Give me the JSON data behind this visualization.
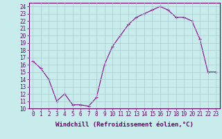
{
  "x": [
    0,
    1,
    2,
    3,
    4,
    5,
    6,
    7,
    8,
    9,
    10,
    11,
    12,
    13,
    14,
    15,
    16,
    17,
    18,
    19,
    20,
    21,
    22,
    23
  ],
  "y": [
    16.5,
    15.5,
    14.0,
    11.0,
    12.0,
    10.5,
    10.5,
    10.3,
    11.5,
    16.0,
    18.5,
    20.0,
    21.5,
    22.5,
    23.0,
    23.5,
    24.0,
    23.5,
    22.5,
    22.5,
    22.0,
    19.5,
    15.0,
    15.0
  ],
  "line_color": "#880088",
  "marker": "+",
  "bg_color": "#c8ecec",
  "grid_color": "#aacccc",
  "xlabel": "Windchill (Refroidissement éolien,°C)",
  "ylabel_ticks": [
    10,
    11,
    12,
    13,
    14,
    15,
    16,
    17,
    18,
    19,
    20,
    21,
    22,
    23,
    24
  ],
  "xlim": [
    -0.5,
    23.5
  ],
  "ylim": [
    10,
    24.5
  ],
  "font_color": "#660066",
  "tick_font_size": 5.5,
  "xlabel_font_size": 6.5
}
